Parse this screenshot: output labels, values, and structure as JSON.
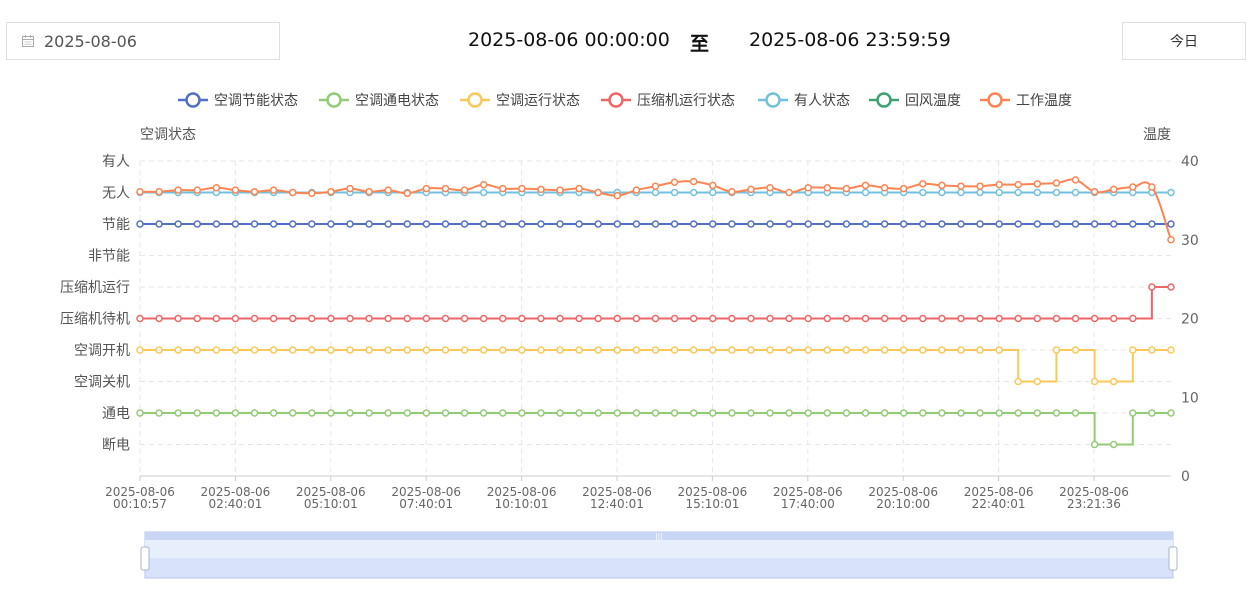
{
  "toolbar": {
    "date_value": "2025-08-06",
    "range_start": "2025-08-06 00:00:00",
    "range_sep": "至",
    "range_end": "2025-08-06 23:59:59",
    "today_label": "今日"
  },
  "chart_data": {
    "type": "line",
    "legend_position": "top",
    "left_axis": {
      "title": "空调状态",
      "labels": [
        "有人",
        "无人",
        "节能",
        "非节能",
        "压缩机运行",
        "压缩机待机",
        "空调开机",
        "空调关机",
        "通电",
        "断电"
      ]
    },
    "right_axis": {
      "title": "温度",
      "ylim": [
        0,
        40
      ],
      "ticks": [
        0,
        10,
        20,
        30,
        40
      ]
    },
    "x_labels": [
      [
        "2025-08-06",
        "00:10:57"
      ],
      [
        "2025-08-06",
        "02:40:01"
      ],
      [
        "2025-08-06",
        "05:10:01"
      ],
      [
        "2025-08-06",
        "07:40:01"
      ],
      [
        "2025-08-06",
        "10:10:01"
      ],
      [
        "2025-08-06",
        "12:40:01"
      ],
      [
        "2025-08-06",
        "15:10:01"
      ],
      [
        "2025-08-06",
        "17:40:00"
      ],
      [
        "2025-08-06",
        "20:10:00"
      ],
      [
        "2025-08-06",
        "22:40:01"
      ],
      [
        "2025-08-06",
        "23:21:36"
      ]
    ],
    "series": [
      {
        "name": "空调节能状态",
        "color": "#5470c6",
        "axis": "state",
        "values": [
          2,
          2,
          2,
          2,
          2,
          2,
          2,
          2,
          2,
          2,
          2,
          2,
          2,
          2,
          2,
          2,
          2,
          2,
          2,
          2,
          2,
          2,
          2,
          2,
          2,
          2,
          2,
          2,
          2,
          2,
          2,
          2,
          2,
          2,
          2,
          2,
          2,
          2,
          2,
          2,
          2,
          2,
          2,
          2,
          2,
          2,
          2,
          2,
          2,
          2,
          2,
          2,
          2,
          2,
          2
        ]
      },
      {
        "name": "空调通电状态",
        "color": "#91cc75",
        "axis": "state",
        "values": [
          8,
          8,
          8,
          8,
          8,
          8,
          8,
          8,
          8,
          8,
          8,
          8,
          8,
          8,
          8,
          8,
          8,
          8,
          8,
          8,
          8,
          8,
          8,
          8,
          8,
          8,
          8,
          8,
          8,
          8,
          8,
          8,
          8,
          8,
          8,
          8,
          8,
          8,
          8,
          8,
          8,
          8,
          8,
          8,
          8,
          8,
          8,
          8,
          8,
          8,
          9,
          9,
          8,
          8,
          8
        ]
      },
      {
        "name": "空调运行状态",
        "color": "#fac858",
        "axis": "state",
        "values": [
          6,
          6,
          6,
          6,
          6,
          6,
          6,
          6,
          6,
          6,
          6,
          6,
          6,
          6,
          6,
          6,
          6,
          6,
          6,
          6,
          6,
          6,
          6,
          6,
          6,
          6,
          6,
          6,
          6,
          6,
          6,
          6,
          6,
          6,
          6,
          6,
          6,
          6,
          6,
          6,
          6,
          6,
          6,
          6,
          6,
          6,
          7,
          7,
          6,
          6,
          7,
          7,
          6,
          6,
          6
        ]
      },
      {
        "name": "压缩机运行状态",
        "color": "#ee6666",
        "axis": "state",
        "values": [
          5,
          5,
          5,
          5,
          5,
          5,
          5,
          5,
          5,
          5,
          5,
          5,
          5,
          5,
          5,
          5,
          5,
          5,
          5,
          5,
          5,
          5,
          5,
          5,
          5,
          5,
          5,
          5,
          5,
          5,
          5,
          5,
          5,
          5,
          5,
          5,
          5,
          5,
          5,
          5,
          5,
          5,
          5,
          5,
          5,
          5,
          5,
          5,
          5,
          5,
          5,
          5,
          5,
          4,
          4
        ]
      },
      {
        "name": "有人状态",
        "color": "#73c0de",
        "axis": "state",
        "values": [
          1,
          1,
          1,
          1,
          1,
          1,
          1,
          1,
          1,
          1,
          1,
          1,
          1,
          1,
          1,
          1,
          1,
          1,
          1,
          1,
          1,
          1,
          1,
          1,
          1,
          1,
          1,
          1,
          1,
          1,
          1,
          1,
          1,
          1,
          1,
          1,
          1,
          1,
          1,
          1,
          1,
          1,
          1,
          1,
          1,
          1,
          1,
          1,
          1,
          1,
          1,
          1,
          1,
          1,
          1
        ]
      },
      {
        "name": "回风温度",
        "color": "#3ba272",
        "axis": "temp",
        "values": []
      },
      {
        "name": "工作温度",
        "color": "#fc8452",
        "axis": "temp",
        "values": [
          36.1,
          36.1,
          36.3,
          36.3,
          36.6,
          36.3,
          36.1,
          36.3,
          36.0,
          35.9,
          36.1,
          36.5,
          36.1,
          36.3,
          35.9,
          36.5,
          36.5,
          36.3,
          37.0,
          36.5,
          36.5,
          36.4,
          36.3,
          36.5,
          36.0,
          35.6,
          36.3,
          36.8,
          37.3,
          37.4,
          36.9,
          36.1,
          36.4,
          36.6,
          36.0,
          36.6,
          36.6,
          36.5,
          36.9,
          36.6,
          36.5,
          37.1,
          36.9,
          36.8,
          36.8,
          37.0,
          37.0,
          37.1,
          37.2,
          37.6,
          36.1,
          36.4,
          36.7,
          36.7,
          30.0
        ]
      }
    ]
  }
}
